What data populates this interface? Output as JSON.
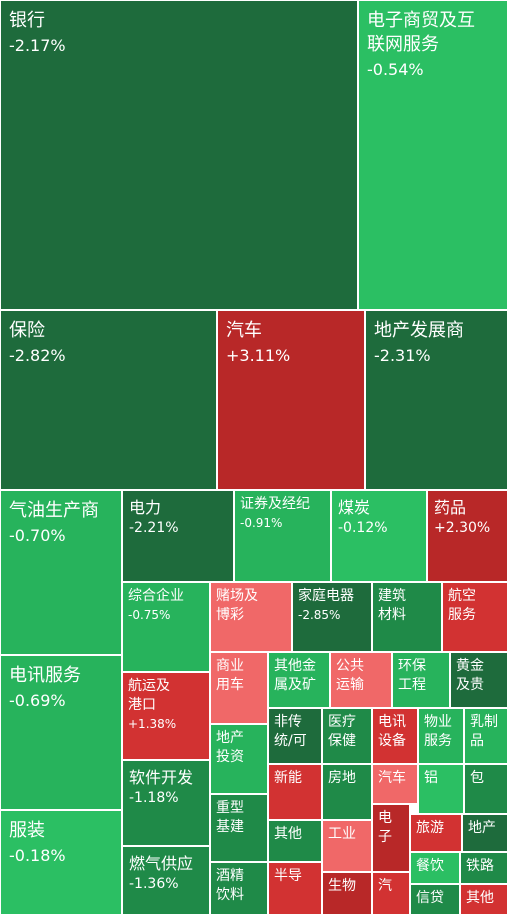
{
  "chart_data": {
    "type": "treemap",
    "colors": {
      "dark_green": "#1e6b3c",
      "mid_green": "#1f8a48",
      "green": "#27b35c",
      "light_green": "#2bbf63",
      "pale_red": "#f06868",
      "red": "#d23232",
      "dark_red": "#b82828"
    },
    "items": [
      {
        "name": "银行",
        "change": "-2.17%"
      },
      {
        "name": "电子商贸及互\n联网服务",
        "change": "-0.54%"
      },
      {
        "name": "保险",
        "change": "-2.82%"
      },
      {
        "name": "汽车",
        "change": "+3.11%"
      },
      {
        "name": "地产发展商",
        "change": "-2.31%"
      },
      {
        "name": "气油生产商",
        "change": "-0.70%"
      },
      {
        "name": "电力",
        "change": "-2.21%"
      },
      {
        "name": "证券及经纪",
        "change": "-0.91%"
      },
      {
        "name": "煤炭",
        "change": "-0.12%"
      },
      {
        "name": "药品",
        "change": "+2.30%"
      },
      {
        "name": "综合企业",
        "change": "-0.75%"
      },
      {
        "name": "赌场及\n博彩",
        "change": ""
      },
      {
        "name": "家庭电器",
        "change": "-2.85%"
      },
      {
        "name": "建筑\n材料",
        "change": ""
      },
      {
        "name": "航空\n服务",
        "change": ""
      },
      {
        "name": "电讯服务",
        "change": "-0.69%"
      },
      {
        "name": "航运及\n港口",
        "change": "+1.38%"
      },
      {
        "name": "商业\n用车",
        "change": ""
      },
      {
        "name": "其他金\n属及矿",
        "change": ""
      },
      {
        "name": "公共\n运输",
        "change": ""
      },
      {
        "name": "环保\n工程",
        "change": ""
      },
      {
        "name": "黄金\n及贵",
        "change": ""
      },
      {
        "name": "地产\n投资",
        "change": ""
      },
      {
        "name": "非传\n统/可",
        "change": ""
      },
      {
        "name": "医疗\n保健",
        "change": ""
      },
      {
        "name": "电讯\n设备",
        "change": ""
      },
      {
        "name": "物业\n服务",
        "change": ""
      },
      {
        "name": "乳制\n品",
        "change": ""
      },
      {
        "name": "软件开发",
        "change": "-1.18%"
      },
      {
        "name": "新能",
        "change": ""
      },
      {
        "name": "房地",
        "change": ""
      },
      {
        "name": "汽车",
        "change": ""
      },
      {
        "name": "铝",
        "change": ""
      },
      {
        "name": "包",
        "change": ""
      },
      {
        "name": "重型\n基建",
        "change": ""
      },
      {
        "name": "服装",
        "change": "-0.18%"
      },
      {
        "name": "其他",
        "change": ""
      },
      {
        "name": "工业",
        "change": ""
      },
      {
        "name": "电\n子",
        "change": ""
      },
      {
        "name": "旅游",
        "change": ""
      },
      {
        "name": "地产",
        "change": ""
      },
      {
        "name": "燃气供应",
        "change": "-1.36%"
      },
      {
        "name": "餐饮",
        "change": ""
      },
      {
        "name": "铁路",
        "change": ""
      },
      {
        "name": "酒精\n饮料",
        "change": ""
      },
      {
        "name": "半导",
        "change": ""
      },
      {
        "name": "生物",
        "change": ""
      },
      {
        "name": "汽",
        "change": ""
      },
      {
        "name": "信贷",
        "change": ""
      },
      {
        "name": "其他",
        "change": ""
      }
    ]
  }
}
